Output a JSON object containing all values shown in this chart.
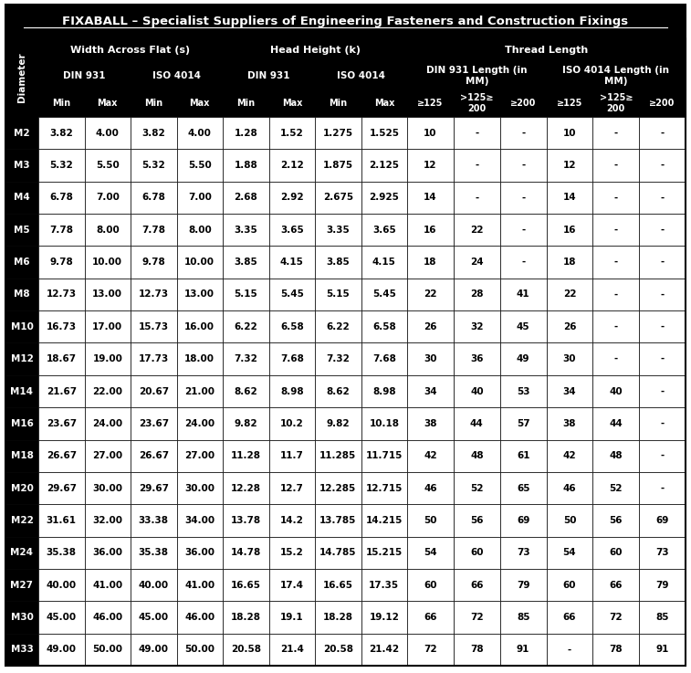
{
  "title": "FIXABALL – Specialist Suppliers of Engineering Fasteners and Construction Fixings",
  "background_color": "#ffffff",
  "header_bg": "#000000",
  "header_text_color": "#ffffff",
  "title_bg": "#000000",
  "title_text_color": "#ffffff",
  "row_labels": [
    "M2",
    "M3",
    "M4",
    "M5",
    "M6",
    "M8",
    "M10",
    "M12",
    "M14",
    "M16",
    "M18",
    "M20",
    "M22",
    "M24",
    "M27",
    "M30",
    "M33"
  ],
  "h3_labels": [
    "Min",
    "Max",
    "Min",
    "Max",
    "Min",
    "Max",
    "Min",
    "Max",
    "≥125",
    ">125≥\n200",
    "≥200",
    "≥125",
    ">125≥\n200",
    "≥200"
  ],
  "data": [
    [
      "3.82",
      "4.00",
      "3.82",
      "4.00",
      "1.28",
      "1.52",
      "1.275",
      "1.525",
      "10",
      "-",
      "-",
      "10",
      "-",
      "-"
    ],
    [
      "5.32",
      "5.50",
      "5.32",
      "5.50",
      "1.88",
      "2.12",
      "1.875",
      "2.125",
      "12",
      "-",
      "-",
      "12",
      "-",
      "-"
    ],
    [
      "6.78",
      "7.00",
      "6.78",
      "7.00",
      "2.68",
      "2.92",
      "2.675",
      "2.925",
      "14",
      "-",
      "-",
      "14",
      "-",
      "-"
    ],
    [
      "7.78",
      "8.00",
      "7.78",
      "8.00",
      "3.35",
      "3.65",
      "3.35",
      "3.65",
      "16",
      "22",
      "-",
      "16",
      "-",
      "-"
    ],
    [
      "9.78",
      "10.00",
      "9.78",
      "10.00",
      "3.85",
      "4.15",
      "3.85",
      "4.15",
      "18",
      "24",
      "-",
      "18",
      "-",
      "-"
    ],
    [
      "12.73",
      "13.00",
      "12.73",
      "13.00",
      "5.15",
      "5.45",
      "5.15",
      "5.45",
      "22",
      "28",
      "41",
      "22",
      "-",
      "-"
    ],
    [
      "16.73",
      "17.00",
      "15.73",
      "16.00",
      "6.22",
      "6.58",
      "6.22",
      "6.58",
      "26",
      "32",
      "45",
      "26",
      "-",
      "-"
    ],
    [
      "18.67",
      "19.00",
      "17.73",
      "18.00",
      "7.32",
      "7.68",
      "7.32",
      "7.68",
      "30",
      "36",
      "49",
      "30",
      "-",
      "-"
    ],
    [
      "21.67",
      "22.00",
      "20.67",
      "21.00",
      "8.62",
      "8.98",
      "8.62",
      "8.98",
      "34",
      "40",
      "53",
      "34",
      "40",
      "-"
    ],
    [
      "23.67",
      "24.00",
      "23.67",
      "24.00",
      "9.82",
      "10.2",
      "9.82",
      "10.18",
      "38",
      "44",
      "57",
      "38",
      "44",
      "-"
    ],
    [
      "26.67",
      "27.00",
      "26.67",
      "27.00",
      "11.28",
      "11.7",
      "11.285",
      "11.715",
      "42",
      "48",
      "61",
      "42",
      "48",
      "-"
    ],
    [
      "29.67",
      "30.00",
      "29.67",
      "30.00",
      "12.28",
      "12.7",
      "12.285",
      "12.715",
      "46",
      "52",
      "65",
      "46",
      "52",
      "-"
    ],
    [
      "31.61",
      "32.00",
      "33.38",
      "34.00",
      "13.78",
      "14.2",
      "13.785",
      "14.215",
      "50",
      "56",
      "69",
      "50",
      "56",
      "69"
    ],
    [
      "35.38",
      "36.00",
      "35.38",
      "36.00",
      "14.78",
      "15.2",
      "14.785",
      "15.215",
      "54",
      "60",
      "73",
      "54",
      "60",
      "73"
    ],
    [
      "40.00",
      "41.00",
      "40.00",
      "41.00",
      "16.65",
      "17.4",
      "16.65",
      "17.35",
      "60",
      "66",
      "79",
      "60",
      "66",
      "79"
    ],
    [
      "45.00",
      "46.00",
      "45.00",
      "46.00",
      "18.28",
      "19.1",
      "18.28",
      "19.12",
      "66",
      "72",
      "85",
      "66",
      "72",
      "85"
    ],
    [
      "49.00",
      "50.00",
      "49.00",
      "50.00",
      "20.58",
      "21.4",
      "20.58",
      "21.42",
      "72",
      "78",
      "91",
      "-",
      "78",
      "91"
    ]
  ]
}
